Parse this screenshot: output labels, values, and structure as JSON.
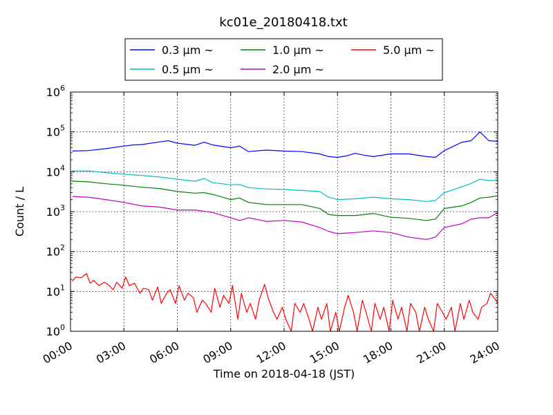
{
  "chart_data": {
    "type": "line",
    "title": "kc01e_20180418.txt",
    "xlabel": "Time on 2018-04-18 (JST)",
    "ylabel": "Count / L",
    "yscale": "log",
    "xlim": [
      0,
      24
    ],
    "ylim": [
      1,
      1000000
    ],
    "grid": true,
    "legend_position": "top-center",
    "x_ticks": [
      {
        "value": 0,
        "label": "00:00"
      },
      {
        "value": 3,
        "label": "03:00"
      },
      {
        "value": 6,
        "label": "06:00"
      },
      {
        "value": 9,
        "label": "09:00"
      },
      {
        "value": 12,
        "label": "12:00"
      },
      {
        "value": 15,
        "label": "15:00"
      },
      {
        "value": 18,
        "label": "18:00"
      },
      {
        "value": 21,
        "label": "21:00"
      },
      {
        "value": 24,
        "label": "24:00"
      }
    ],
    "y_ticks": [
      {
        "value": 1,
        "base": "10",
        "exp": "0"
      },
      {
        "value": 10,
        "base": "10",
        "exp": "1"
      },
      {
        "value": 100,
        "base": "10",
        "exp": "2"
      },
      {
        "value": 1000,
        "base": "10",
        "exp": "3"
      },
      {
        "value": 10000,
        "base": "10",
        "exp": "4"
      },
      {
        "value": 100000,
        "base": "10",
        "exp": "5"
      },
      {
        "value": 1000000,
        "base": "10",
        "exp": "6"
      }
    ],
    "series": [
      {
        "name": "0.3 μm ~",
        "color": "#0000ff",
        "x": [
          0.1,
          1,
          2,
          3,
          3.5,
          4,
          5,
          5.5,
          6,
          7,
          7.5,
          8,
          9,
          9.5,
          10,
          11,
          12,
          13,
          14,
          14.5,
          15,
          15.5,
          16,
          16.5,
          17,
          18,
          19,
          20,
          20.5,
          21,
          22,
          22.5,
          23,
          23.5,
          24
        ],
        "y": [
          33000,
          34000,
          38000,
          44000,
          47000,
          48000,
          56000,
          60000,
          52000,
          46000,
          55000,
          47000,
          40000,
          44000,
          32000,
          35000,
          33000,
          32000,
          28000,
          24000,
          23000,
          25000,
          29000,
          26000,
          24000,
          28000,
          28000,
          24000,
          23000,
          34000,
          55000,
          60000,
          100000,
          60000,
          58000
        ]
      },
      {
        "name": "0.5 μm ~",
        "color": "#00bfbf",
        "x": [
          0.1,
          1,
          2,
          3,
          4,
          5,
          6,
          7,
          7.5,
          8,
          9,
          9.5,
          10,
          11,
          12,
          13,
          14,
          14.5,
          15,
          16,
          17,
          18,
          19,
          20,
          20.5,
          21,
          22,
          22.5,
          23,
          23.5,
          24
        ],
        "y": [
          10500,
          10500,
          9500,
          8700,
          8100,
          7400,
          6500,
          5800,
          6800,
          5300,
          4700,
          4800,
          4000,
          3700,
          3600,
          3400,
          3200,
          2300,
          2000,
          2100,
          2300,
          2100,
          2000,
          1800,
          1900,
          3000,
          4200,
          5100,
          6500,
          6000,
          6100
        ]
      },
      {
        "name": "1.0 μm ~",
        "color": "#008000",
        "x": [
          0.1,
          1,
          2,
          3,
          4,
          5,
          6,
          7,
          7.5,
          8,
          9,
          9.5,
          10,
          11,
          12,
          13,
          14,
          14.5,
          15,
          16,
          17,
          18,
          19,
          20,
          20.5,
          21,
          22,
          22.5,
          23,
          23.5,
          24
        ],
        "y": [
          5800,
          5600,
          5000,
          4600,
          4100,
          3800,
          3200,
          2900,
          3000,
          2700,
          2000,
          2200,
          1700,
          1500,
          1500,
          1500,
          1200,
          850,
          800,
          800,
          900,
          720,
          680,
          600,
          650,
          1200,
          1400,
          1700,
          2200,
          2300,
          2500
        ]
      },
      {
        "name": "2.0 μm ~",
        "color": "#bf00bf",
        "x": [
          0.1,
          1,
          2,
          3,
          4,
          5,
          6,
          7,
          8,
          9,
          9.5,
          10,
          11,
          12,
          13,
          14,
          14.5,
          15,
          16,
          17,
          18,
          19,
          20,
          20.5,
          21,
          22,
          22.5,
          23,
          23.5,
          24
        ],
        "y": [
          2400,
          2300,
          2000,
          1700,
          1400,
          1300,
          1100,
          1100,
          950,
          700,
          600,
          700,
          570,
          600,
          550,
          400,
          320,
          280,
          300,
          330,
          300,
          230,
          200,
          230,
          400,
          500,
          650,
          700,
          700,
          950
        ]
      },
      {
        "name": "5.0 μm ~",
        "color": "#ff0000",
        "x": [
          0.1,
          0.3,
          0.6,
          0.9,
          1.1,
          1.3,
          1.6,
          1.9,
          2.1,
          2.4,
          2.6,
          2.9,
          3.1,
          3.3,
          3.6,
          3.9,
          4.1,
          4.4,
          4.6,
          4.9,
          5.1,
          5.4,
          5.6,
          5.9,
          6.1,
          6.4,
          6.6,
          6.9,
          7.1,
          7.4,
          7.6,
          7.9,
          8.1,
          8.4,
          8.6,
          8.9,
          9.1,
          9.4,
          9.6,
          9.9,
          10.1,
          10.4,
          10.6,
          10.9,
          11.1,
          11.4,
          11.6,
          11.9,
          12.1,
          12.4,
          12.6,
          12.9,
          13.1,
          13.4,
          13.6,
          13.9,
          14.1,
          14.4,
          14.6,
          14.9,
          15.1,
          15.4,
          15.6,
          15.9,
          16.1,
          16.4,
          16.6,
          16.9,
          17.1,
          17.4,
          17.6,
          17.9,
          18.1,
          18.4,
          18.6,
          18.9,
          19.1,
          19.4,
          19.6,
          19.9,
          20.1,
          20.4,
          20.6,
          20.9,
          21.1,
          21.4,
          21.6,
          21.9,
          22.1,
          22.4,
          22.6,
          22.9,
          23.1,
          23.4,
          23.6,
          23.9,
          24
        ],
        "y": [
          18,
          23,
          22,
          28,
          16,
          19,
          14,
          17,
          15,
          11,
          17,
          12,
          23,
          14,
          16,
          9,
          12,
          11,
          6,
          13,
          5,
          9,
          11,
          5,
          14,
          6,
          9,
          7,
          3,
          6,
          5,
          3,
          12,
          4,
          8,
          5,
          14,
          2,
          9,
          3,
          5,
          2,
          6,
          15,
          7,
          3,
          2,
          4,
          2,
          1,
          5,
          3,
          5,
          2,
          1,
          4,
          2,
          5,
          1,
          3,
          1,
          4,
          8,
          3,
          1,
          6,
          3,
          1,
          5,
          2,
          4,
          1,
          6,
          2,
          4,
          1,
          5,
          3,
          1,
          4,
          2,
          1,
          5,
          3,
          2,
          4,
          1,
          5,
          2,
          6,
          3,
          2,
          4,
          5,
          9,
          6,
          5
        ]
      }
    ]
  }
}
